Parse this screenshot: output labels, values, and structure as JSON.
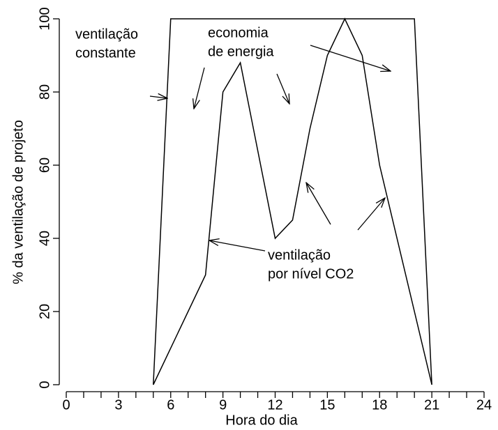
{
  "chart_data": {
    "type": "line",
    "x_label": "Hora do dia",
    "y_label": "% da ventilação de projeto",
    "series": [
      {
        "color": "#000000",
        "x": [
          5,
          6,
          20,
          21
        ],
        "values": [
          0,
          100,
          100,
          0
        ]
      },
      {
        "color": "#000000",
        "x": [
          5,
          8,
          9,
          10,
          12,
          13,
          14,
          15,
          16,
          17,
          18,
          21
        ],
        "values": [
          0,
          30,
          80,
          88,
          40,
          45,
          70,
          90,
          100,
          90,
          60,
          0
        ]
      }
    ],
    "xlim": [
      0,
      24
    ],
    "xticks": [
      0,
      3,
      6,
      9,
      12,
      15,
      18,
      21,
      24
    ],
    "xminorticks": [
      1,
      2,
      4,
      5,
      7,
      8,
      10,
      11,
      13,
      14,
      16,
      17,
      19,
      20,
      22,
      23
    ],
    "ylim": [
      0,
      100
    ],
    "yticks": [
      0,
      20,
      40,
      60,
      80,
      100
    ],
    "annotations": [
      {
        "lines": [
          "ventilação",
          "constante"
        ]
      },
      {
        "lines": [
          "economia",
          "de energia"
        ]
      },
      {
        "lines": [
          "ventilação",
          "por nível CO2"
        ]
      }
    ]
  }
}
